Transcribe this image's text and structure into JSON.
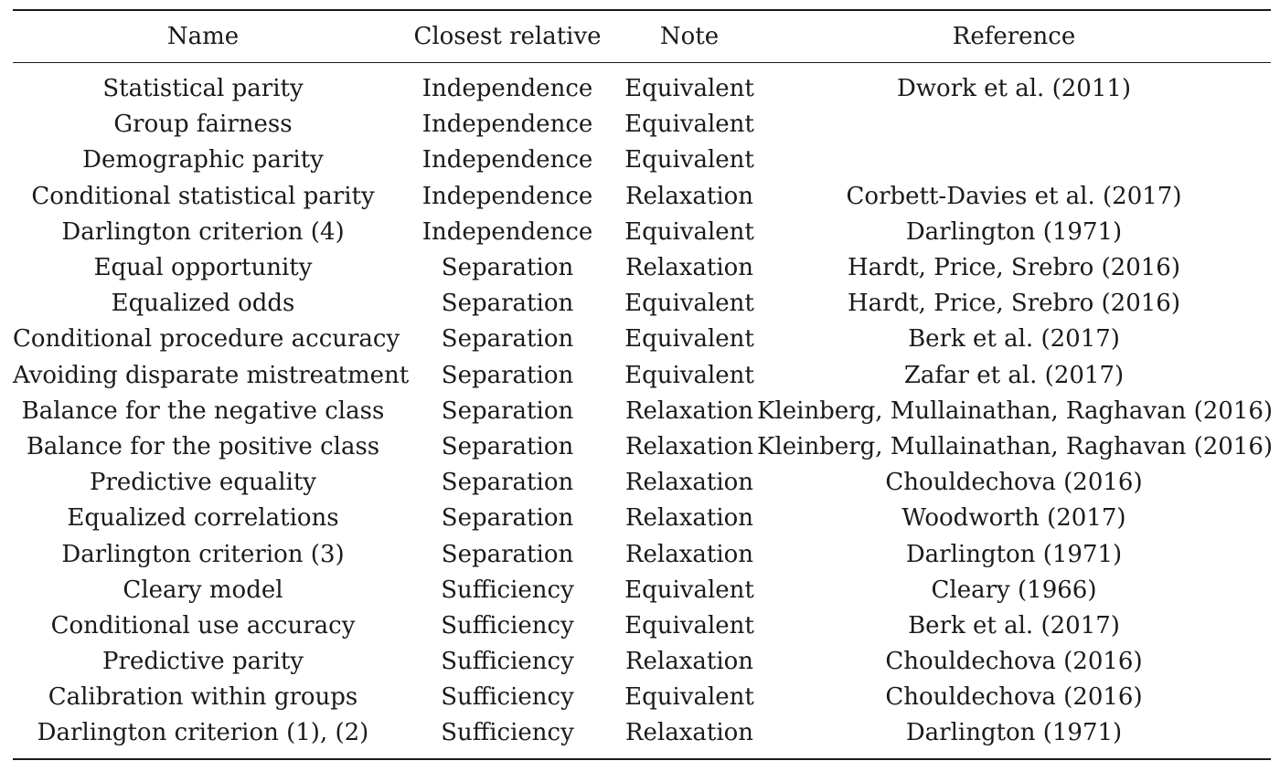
{
  "table": {
    "headers": [
      "Name",
      "Closest relative",
      "Note",
      "Reference"
    ],
    "rows": [
      [
        "Statistical parity",
        "Independence",
        "Equivalent",
        "Dwork et al. (2011)"
      ],
      [
        "Group fairness",
        "Independence",
        "Equivalent",
        ""
      ],
      [
        "Demographic parity",
        "Independence",
        "Equivalent",
        ""
      ],
      [
        "Conditional statistical parity",
        "Independence",
        "Relaxation",
        "Corbett-Davies et al. (2017)"
      ],
      [
        "Darlington criterion (4)",
        "Independence",
        "Equivalent",
        "Darlington (1971)"
      ],
      [
        "Equal opportunity",
        "Separation",
        "Relaxation",
        "Hardt, Price, Srebro (2016)"
      ],
      [
        "Equalized odds",
        "Separation",
        "Equivalent",
        "Hardt, Price, Srebro (2016)"
      ],
      [
        "Conditional procedure accuracy",
        "Separation",
        "Equivalent",
        "Berk et al. (2017)"
      ],
      [
        "Avoiding disparate mistreatment",
        "Separation",
        "Equivalent",
        "Zafar et al. (2017)"
      ],
      [
        "Balance for the negative class",
        "Separation",
        "Relaxation",
        "Kleinberg, Mullainathan, Raghavan (2016)"
      ],
      [
        "Balance for the positive class",
        "Separation",
        "Relaxation",
        "Kleinberg, Mullainathan, Raghavan (2016)"
      ],
      [
        "Predictive equality",
        "Separation",
        "Relaxation",
        "Chouldechova (2016)"
      ],
      [
        "Equalized correlations",
        "Separation",
        "Relaxation",
        "Woodworth (2017)"
      ],
      [
        "Darlington criterion (3)",
        "Separation",
        "Relaxation",
        "Darlington (1971)"
      ],
      [
        "Cleary model",
        "Sufficiency",
        "Equivalent",
        "Cleary (1966)"
      ],
      [
        "Conditional use accuracy",
        "Sufficiency",
        "Equivalent",
        "Berk et al. (2017)"
      ],
      [
        "Predictive parity",
        "Sufficiency",
        "Relaxation",
        "Chouldechova (2016)"
      ],
      [
        "Calibration within groups",
        "Sufficiency",
        "Equivalent",
        "Chouldechova (2016)"
      ],
      [
        "Darlington criterion (1), (2)",
        "Sufficiency",
        "Relaxation",
        "Darlington (1971)"
      ]
    ]
  }
}
